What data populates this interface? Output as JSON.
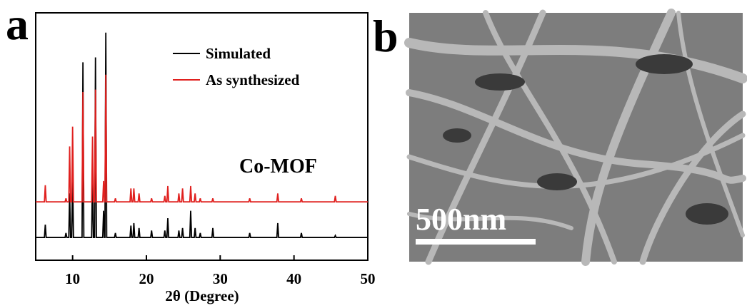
{
  "panel_labels": [
    "a",
    "b"
  ],
  "scale_bar": "500nm",
  "chart_data": {
    "type": "line",
    "xlabel": "2θ (Degree)",
    "annotation": "Co-MOF",
    "legend": "top-right",
    "xlim": [
      5,
      50
    ],
    "xticks": [
      10,
      20,
      30,
      40,
      50
    ],
    "ylim": [
      0,
      100
    ],
    "x": [
      5,
      6.18,
      6.3,
      6.42,
      8.98,
      9.1,
      9.22,
      9.48,
      9.6,
      9.72,
      9.88,
      10.0,
      10.12,
      11.28,
      11.4,
      11.52,
      12.58,
      12.7,
      12.82,
      12.98,
      13.1,
      13.22,
      14.08,
      14.2,
      14.32,
      14.38,
      14.5,
      14.62,
      15.68,
      15.8,
      15.92,
      17.78,
      17.9,
      18.02,
      18.18,
      18.3,
      18.42,
      18.88,
      19.0,
      19.12,
      20.58,
      20.7,
      20.82,
      22.38,
      22.5,
      22.62,
      22.78,
      22.9,
      23.02,
      24.28,
      24.4,
      24.52,
      24.78,
      24.9,
      25.02,
      25.88,
      26.0,
      26.12,
      26.48,
      26.6,
      26.72,
      27.18,
      27.3,
      27.42,
      28.88,
      29.0,
      29.12,
      33.88,
      34.0,
      34.12,
      37.68,
      37.8,
      37.92,
      40.88,
      41.0,
      41.12,
      45.48,
      45.6,
      45.72,
      50
    ],
    "series": [
      {
        "name": "Simulated",
        "color": "#000000",
        "values": [
          9.2,
          9.2,
          14.4,
          9.2,
          9.2,
          11,
          9.2,
          9.2,
          27,
          9.2,
          9.2,
          34,
          9.2,
          9.2,
          80,
          9.2,
          9.2,
          36,
          9.2,
          9.2,
          82,
          9.2,
          9.2,
          20,
          9.2,
          9.2,
          92,
          9.2,
          9.2,
          11,
          9.2,
          9.2,
          14,
          9.2,
          9.2,
          15,
          9.2,
          9.2,
          13,
          9.2,
          9.2,
          12,
          9.2,
          9.2,
          12,
          9.2,
          9.2,
          17,
          9.2,
          9.2,
          12,
          9.2,
          9.2,
          13,
          9.2,
          9.2,
          20,
          9.2,
          9.2,
          13,
          9.2,
          9.2,
          11,
          9.2,
          9.2,
          13,
          9.2,
          9.2,
          11,
          9.2,
          9.2,
          15,
          9.2,
          9.2,
          11,
          9.2,
          9.2,
          10,
          9.2,
          9.2
        ]
      },
      {
        "name": "As synthesized",
        "color": "#e0201e",
        "values": [
          23.6,
          23.6,
          30.3,
          23.6,
          23.6,
          25,
          23.6,
          23.6,
          46,
          23.6,
          23.6,
          54,
          23.6,
          23.6,
          68,
          23.6,
          23.6,
          50,
          23.6,
          23.6,
          69,
          23.6,
          23.6,
          32,
          23.6,
          23.6,
          75,
          23.6,
          23.6,
          25,
          23.6,
          23.6,
          29,
          23.6,
          23.6,
          29,
          23.6,
          23.6,
          27,
          23.6,
          23.6,
          25,
          23.6,
          23.6,
          26,
          23.6,
          23.6,
          30,
          23.6,
          23.6,
          27,
          23.6,
          23.6,
          29,
          23.6,
          23.6,
          30,
          23.6,
          23.6,
          27,
          23.6,
          23.6,
          25,
          23.6,
          23.6,
          25,
          23.6,
          23.6,
          25,
          23.6,
          23.6,
          27,
          23.6,
          23.6,
          25,
          23.6,
          23.6,
          26,
          23.6,
          23.6
        ]
      }
    ]
  }
}
